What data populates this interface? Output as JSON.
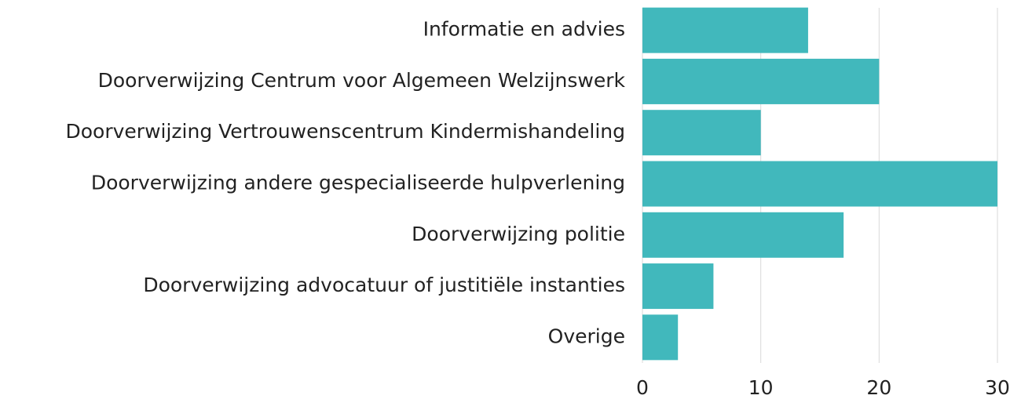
{
  "chart_data": {
    "type": "hbar",
    "categories": [
      "Informatie en advies",
      "Doorverwijzing Centrum voor Algemeen Welzijnswerk",
      "Doorverwijzing Vertrouwenscentrum Kindermishandeling",
      "Doorverwijzing andere gespecialiseerde hulpverlening",
      "Doorverwijzing politie",
      "Doorverwijzing advocatuur of justitiële instanties",
      "Overige"
    ],
    "values": [
      14,
      20,
      10,
      30,
      17,
      6,
      3
    ],
    "color": "#41b8bc",
    "xlim": [
      0,
      30
    ],
    "xticks": [
      0,
      10,
      20,
      30
    ],
    "grid": true
  }
}
